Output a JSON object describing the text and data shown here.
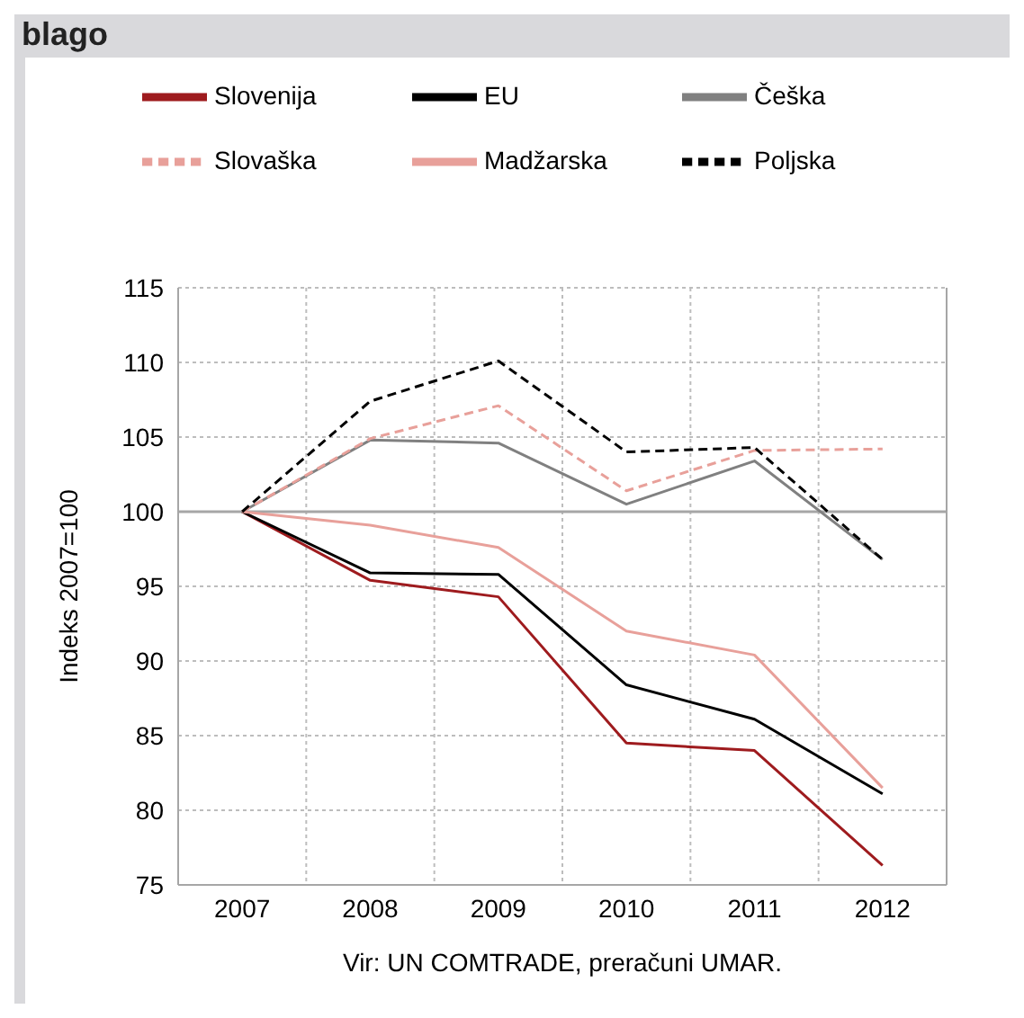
{
  "chart_data": {
    "type": "line",
    "title": "blago",
    "ylabel": "Indeks 2007=100",
    "categories": [
      "2007",
      "2008",
      "2009",
      "2010",
      "2011",
      "2012"
    ],
    "series": [
      {
        "name": "Slovenija",
        "color": "#9e1b1e",
        "line_style": "solid",
        "values": [
          100,
          95.4,
          94.3,
          84.5,
          84.0,
          76.3
        ]
      },
      {
        "name": "EU",
        "color": "#000000",
        "line_style": "solid",
        "values": [
          100,
          95.9,
          95.8,
          88.4,
          86.1,
          81.1
        ]
      },
      {
        "name": "Češka",
        "color": "#808080",
        "line_style": "solid",
        "values": [
          100,
          104.8,
          104.6,
          100.5,
          103.4,
          96.8
        ]
      },
      {
        "name": "Slovaška",
        "color": "#e8a09a",
        "line_style": "dashed",
        "values": [
          100,
          104.9,
          107.1,
          101.4,
          104.1,
          104.2
        ]
      },
      {
        "name": "Madžarska",
        "color": "#e8a09a",
        "line_style": "solid",
        "values": [
          100,
          99.1,
          97.6,
          92.0,
          90.4,
          81.5
        ]
      },
      {
        "name": "Poljska",
        "color": "#000000",
        "line_style": "dashed",
        "values": [
          100,
          107.4,
          110.1,
          104.0,
          104.3,
          96.8
        ]
      }
    ],
    "ylim": [
      75,
      115
    ],
    "yticks": [
      75,
      80,
      85,
      90,
      95,
      100,
      105,
      110,
      115
    ],
    "grid": true,
    "legend": "top",
    "marker": "none",
    "ref_lines": [
      {
        "axis": "y",
        "value": 100,
        "color": "#a6a6a6"
      }
    ],
    "annotations": [
      "Vir: UN COMTRADE, preračuni UMAR."
    ]
  }
}
